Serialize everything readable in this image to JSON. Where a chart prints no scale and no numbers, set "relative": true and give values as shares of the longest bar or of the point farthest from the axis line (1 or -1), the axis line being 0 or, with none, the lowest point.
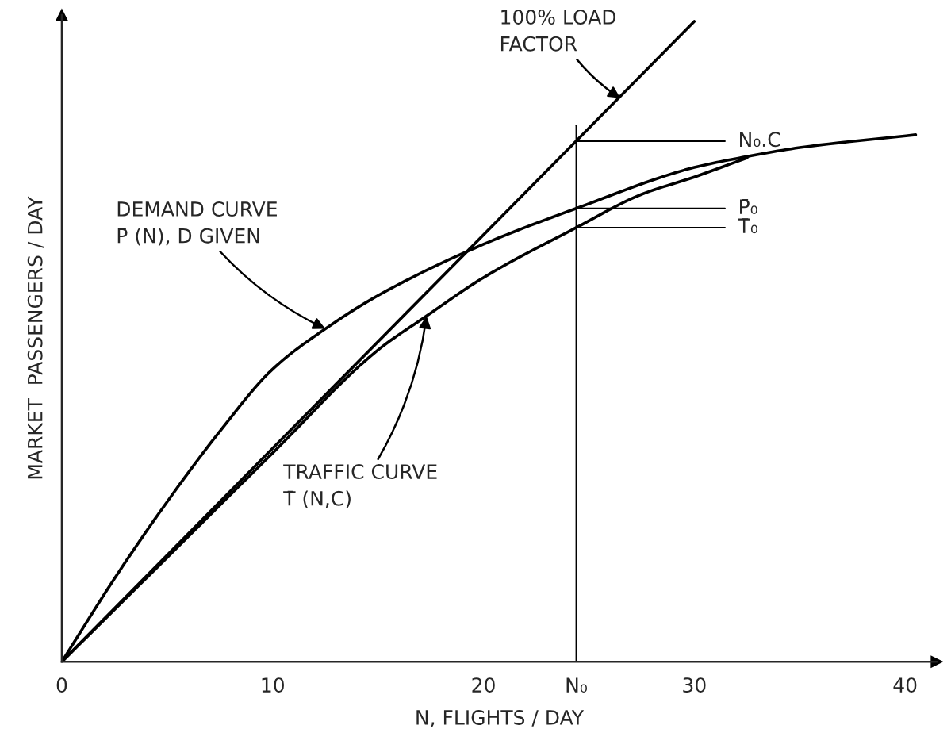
{
  "chart_data": {
    "type": "line",
    "relative": true,
    "xlabel": "N, FLIGHTS / DAY",
    "ylabel": "MARKET  PASSENGERS / DAY",
    "xlim": [
      0,
      41.5
    ],
    "xticks": [
      0,
      10,
      20,
      {
        "value": 24.4,
        "label": "N₀"
      },
      30,
      40
    ],
    "grid": false,
    "legend": false,
    "marker": "none",
    "line_style": "solid",
    "series": [
      {
        "color": "#000000",
        "x": [
          0,
          2.5,
          5,
          7.5,
          10,
          12.5,
          15,
          20,
          24.4,
          30,
          32.5,
          35,
          40.5
        ],
        "values": [
          0,
          0.13,
          0.25,
          0.36,
          0.457,
          0.52,
          0.572,
          0.652,
          0.708,
          0.772,
          0.789,
          0.803,
          0.823
        ]
      },
      {
        "color": "#000000",
        "x": [
          0,
          5,
          10,
          15,
          17.3,
          20,
          24.4,
          27.5,
          30,
          32.5
        ],
        "values": [
          0,
          0.163,
          0.326,
          0.487,
          0.54,
          0.6,
          0.678,
          0.73,
          0.757,
          0.787
        ]
      },
      {
        "color": "#000000",
        "x": [
          0,
          30
        ],
        "values": [
          0,
          1.0
        ]
      }
    ],
    "ref_lines": [
      {
        "axis": "x",
        "value": 24.4,
        "color": "#000000"
      },
      {
        "axis": "y",
        "value": 0.813,
        "label": "N₀.C",
        "color": "#000000"
      },
      {
        "axis": "y",
        "value": 0.708,
        "label": "P̄₀",
        "color": "#000000"
      },
      {
        "axis": "y",
        "value": 0.678,
        "label": "T̄₀",
        "color": "#000000"
      }
    ],
    "annotations": [
      {
        "text": "100% LOAD\nFACTOR",
        "x": 26.5,
        "y": 0.88
      },
      {
        "text": "DEMAND CURVE\nP̄ (N), D GIVEN",
        "x": 12.5,
        "y": 0.52
      },
      {
        "text": "TRAFFIC CURVE\nT̄ (N,C)",
        "x": 17.3,
        "y": 0.54
      }
    ]
  }
}
